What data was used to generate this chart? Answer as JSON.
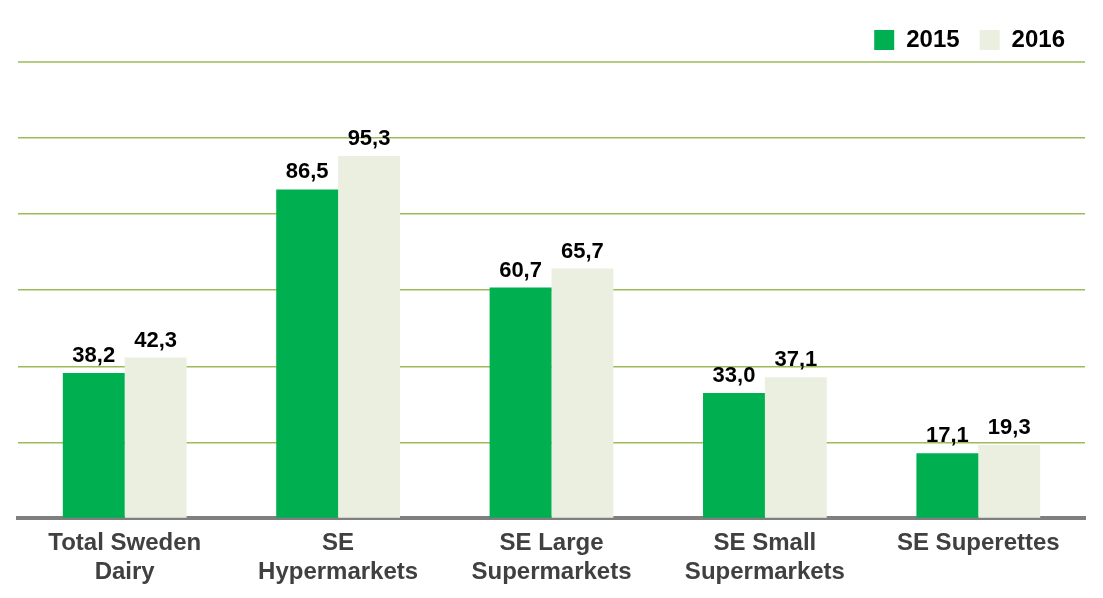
{
  "chart_data": {
    "type": "bar",
    "categories": [
      "Total Sweden Dairy",
      "SE Hypermarkets",
      "SE Large Supermarkets",
      "SE Small Supermarkets",
      "SE Superettes"
    ],
    "series": [
      {
        "name": "2015",
        "color": "#00b050",
        "values": [
          38.2,
          86.5,
          60.7,
          33.0,
          17.1
        ],
        "value_labels": [
          "38,2",
          "86,5",
          "60,7",
          "33,0",
          "17,1"
        ]
      },
      {
        "name": "2016",
        "color": "#ebefdf",
        "values": [
          42.3,
          95.3,
          65.7,
          37.1,
          19.3
        ],
        "value_labels": [
          "42,3",
          "95,3",
          "65,7",
          "37,1",
          "19,3"
        ]
      }
    ],
    "ylim": [
      0,
      120
    ],
    "yticks": [
      {
        "value": 0,
        "label": null
      },
      {
        "value": 20,
        "label": null
      },
      {
        "value": 40,
        "label": null
      },
      {
        "value": 60,
        "label": null
      },
      {
        "value": 80,
        "label": null
      },
      {
        "value": 100,
        "label": null
      }
    ],
    "grid": "y",
    "legend": "top right",
    "tick_labels": "x"
  }
}
